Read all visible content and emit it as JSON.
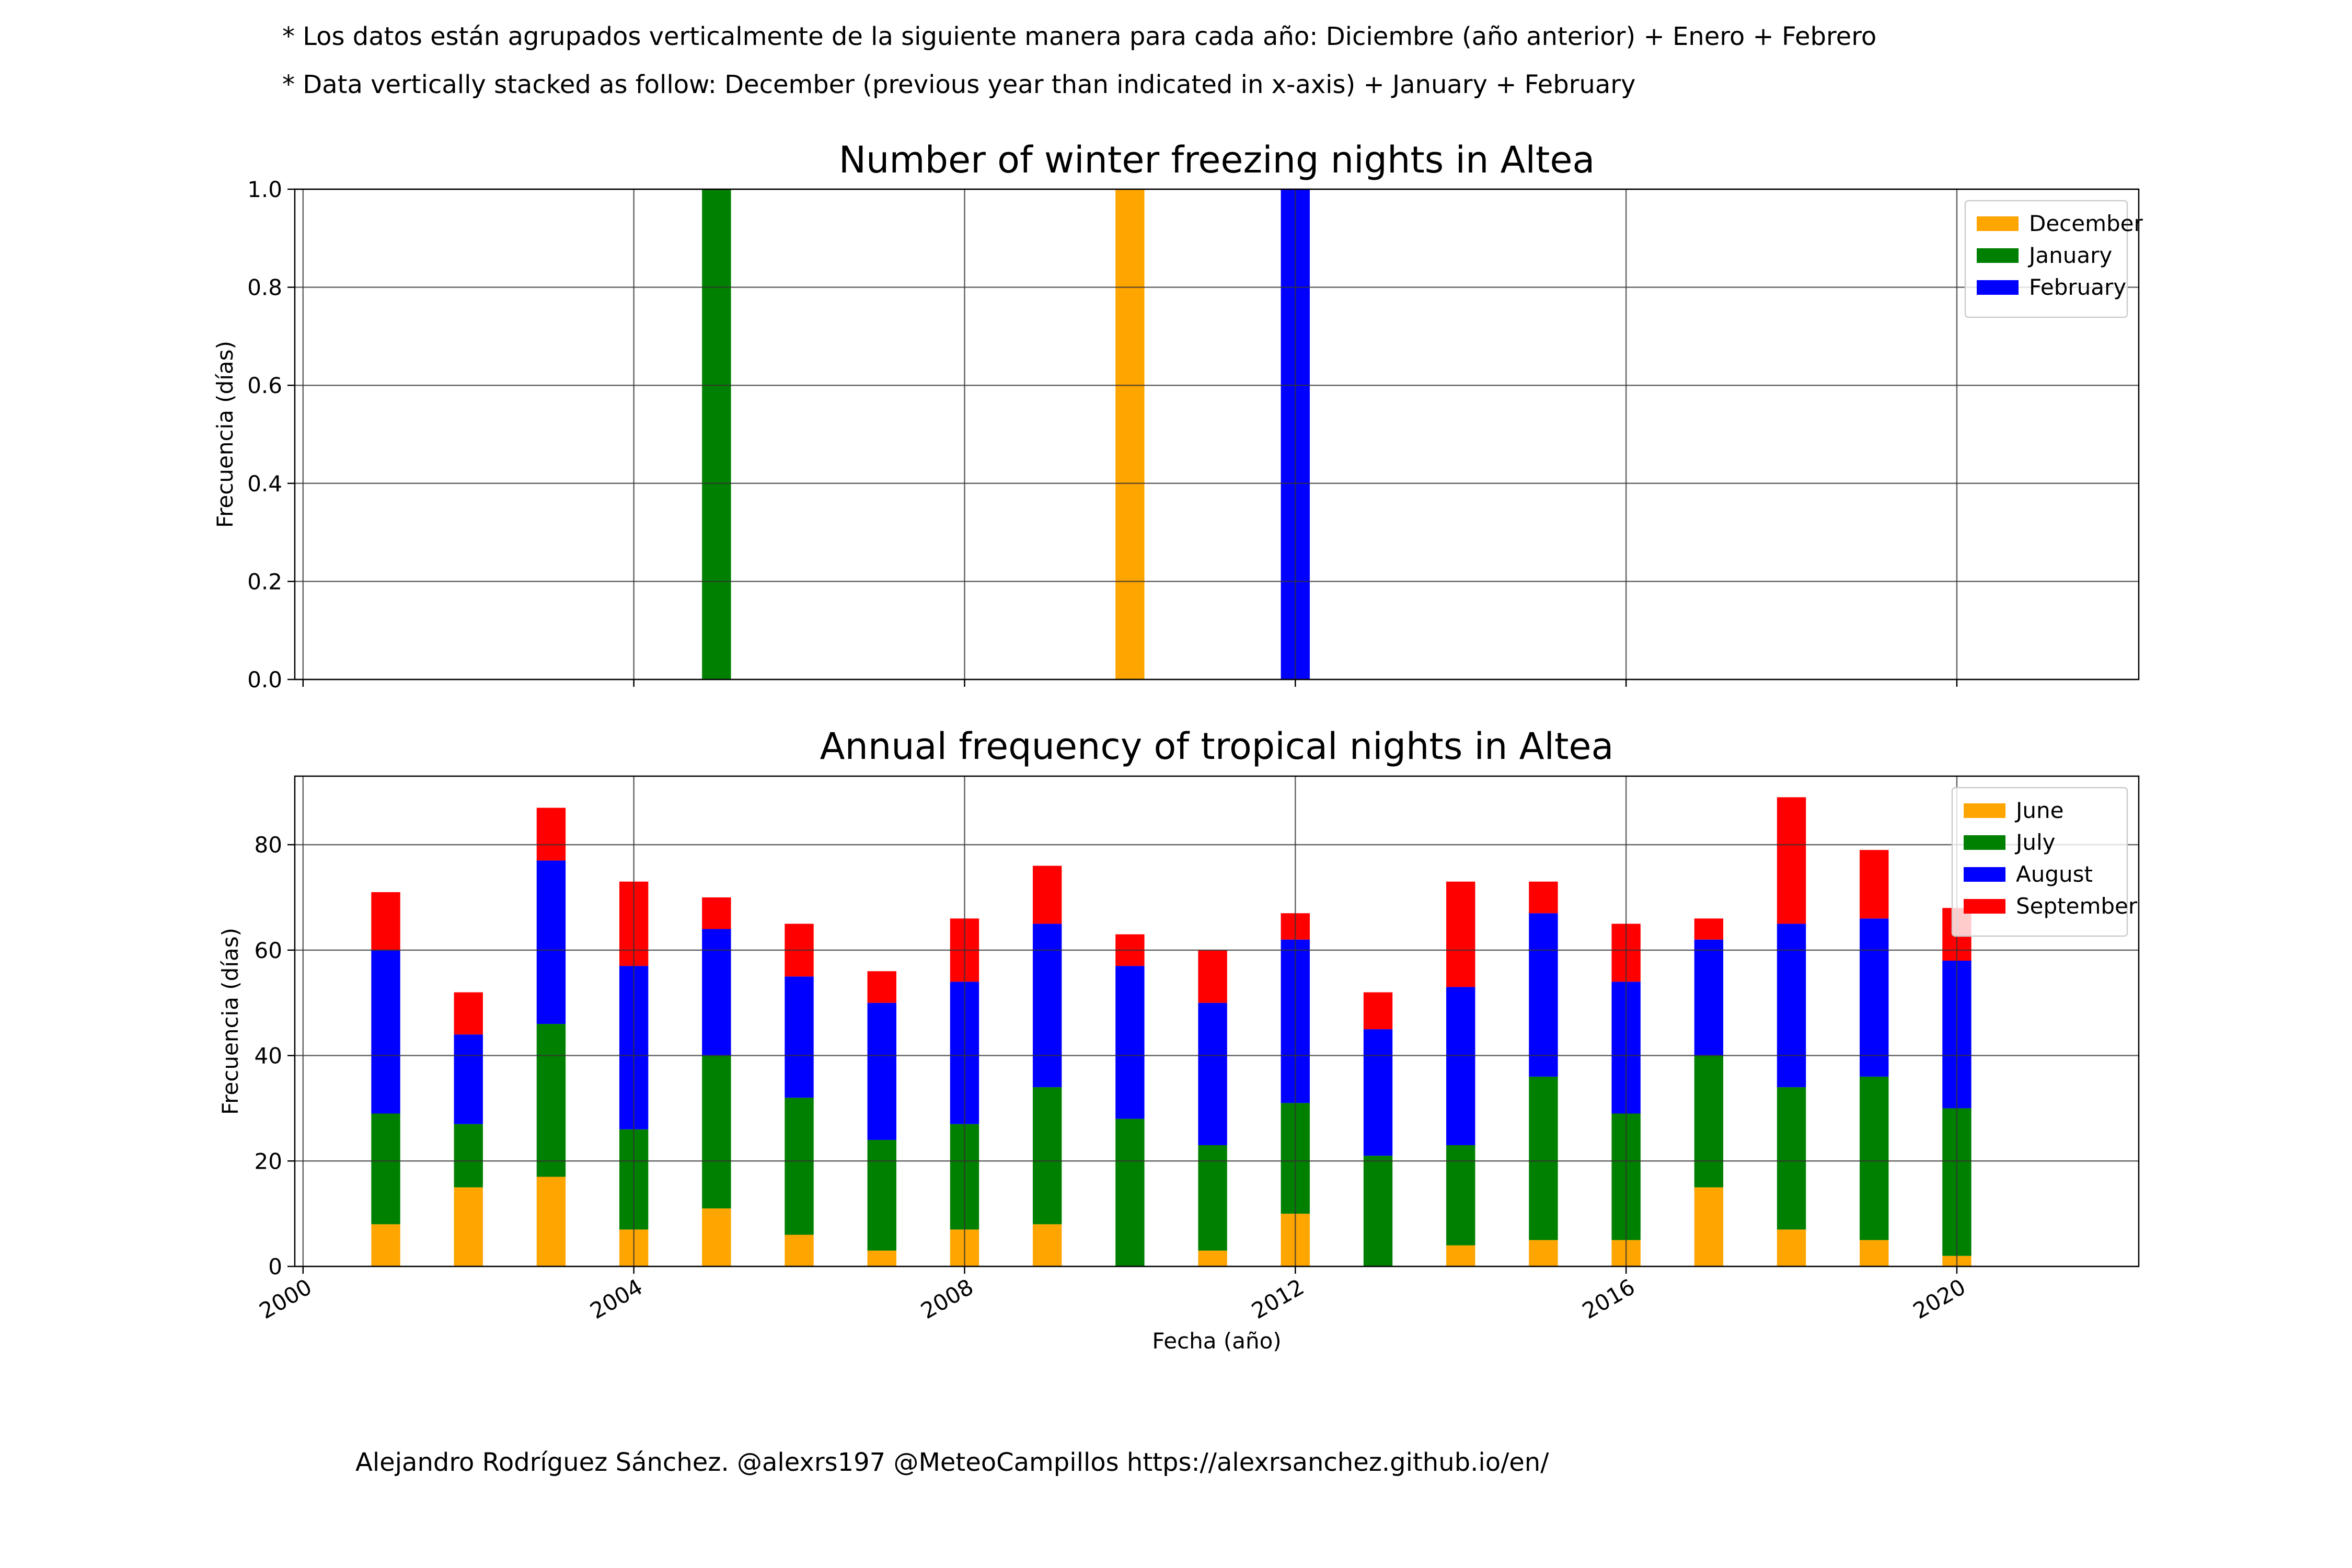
{
  "notes": {
    "es": "* Los datos están agrupados verticalmente de la siguiente manera para cada año: Diciembre (año anterior) + Enero  + Febrero",
    "en": "* Data vertically stacked as follow: December (previous year than indicated in x-axis) + January  + February"
  },
  "credit": "Alejandro Rodríguez Sánchez. @alexrs197 @MeteoCampillos   https://alexrsanchez.github.io/en/",
  "chart_data": [
    {
      "type": "bar",
      "stacked": true,
      "title": "Number of winter freezing nights in Altea",
      "xlabel": "",
      "ylabel": "Frecuencia (días)",
      "xlim": [
        1999.9,
        2022.2
      ],
      "ylim": [
        0,
        1.0
      ],
      "yticks": [
        0.0,
        0.2,
        0.4,
        0.6,
        0.8,
        1.0
      ],
      "ytick_labels": [
        "0.0",
        "0.2",
        "0.4",
        "0.6",
        "0.8",
        "1.0"
      ],
      "xticks": [
        2000,
        2004,
        2008,
        2012,
        2016,
        2020
      ],
      "grid": true,
      "legend_position": "top-right",
      "x": [
        2005,
        2010,
        2012
      ],
      "series": [
        {
          "name": "December",
          "color": "#ffa500",
          "values": [
            0,
            1,
            0
          ]
        },
        {
          "name": "January",
          "color": "#008000",
          "values": [
            1,
            0,
            0
          ]
        },
        {
          "name": "February",
          "color": "#0000ff",
          "values": [
            0,
            0,
            1
          ]
        }
      ]
    },
    {
      "type": "bar",
      "stacked": true,
      "title": "Annual frequency of tropical nights in Altea",
      "xlabel": "Fecha (año)",
      "ylabel": "Frecuencia (días)",
      "xlim": [
        1999.9,
        2022.2
      ],
      "ylim": [
        0,
        93
      ],
      "yticks": [
        0,
        20,
        40,
        60,
        80
      ],
      "ytick_labels": [
        "0",
        "20",
        "40",
        "60",
        "80"
      ],
      "xticks": [
        2000,
        2004,
        2008,
        2012,
        2016,
        2020
      ],
      "xtick_labels": [
        "2000",
        "2004",
        "2008",
        "2012",
        "2016",
        "2020"
      ],
      "grid": true,
      "legend_position": "top-right",
      "x": [
        2001,
        2002,
        2003,
        2004,
        2005,
        2006,
        2007,
        2008,
        2009,
        2010,
        2011,
        2012,
        2013,
        2014,
        2015,
        2016,
        2017,
        2018,
        2019,
        2020
      ],
      "series": [
        {
          "name": "June",
          "color": "#ffa500",
          "values": [
            8,
            15,
            17,
            7,
            11,
            6,
            3,
            7,
            8,
            0,
            3,
            10,
            0,
            4,
            5,
            5,
            15,
            7,
            5,
            2
          ]
        },
        {
          "name": "July",
          "color": "#008000",
          "values": [
            21,
            12,
            29,
            19,
            29,
            26,
            21,
            20,
            26,
            28,
            20,
            21,
            21,
            19,
            31,
            24,
            25,
            27,
            31,
            28
          ]
        },
        {
          "name": "August",
          "color": "#0000ff",
          "values": [
            31,
            17,
            31,
            31,
            24,
            23,
            26,
            27,
            31,
            29,
            27,
            31,
            24,
            30,
            31,
            25,
            22,
            31,
            30,
            28
          ]
        },
        {
          "name": "September",
          "color": "#ff0000",
          "values": [
            11,
            8,
            10,
            16,
            6,
            10,
            6,
            12,
            11,
            6,
            10,
            5,
            7,
            20,
            6,
            11,
            4,
            24,
            13,
            10
          ]
        }
      ]
    }
  ]
}
